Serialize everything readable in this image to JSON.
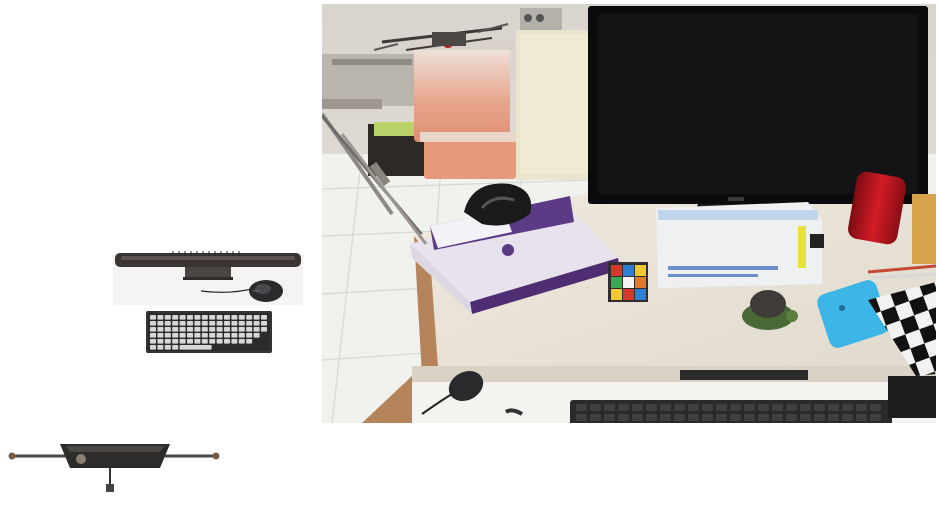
{
  "scene": {
    "objects": [
      "monitor-render",
      "keyboard-render",
      "mouse-render",
      "dock-render",
      "desk-photo"
    ],
    "photo_items": [
      "computer-monitor",
      "storage-bin",
      "quadcopter",
      "book-stack",
      "vr-headset",
      "rubiks-cube",
      "turtle-figurine",
      "smartphone",
      "checkerboard",
      "thermos",
      "keyboard",
      "mouse"
    ]
  },
  "colors": {
    "phone": "#3cb6e6",
    "thermos": "#b8141c",
    "desk": "#ece7dc",
    "floor": "#f1f1ee",
    "monitor": "#0b0b0d",
    "storage_bin_lid": "#e79a7a"
  }
}
